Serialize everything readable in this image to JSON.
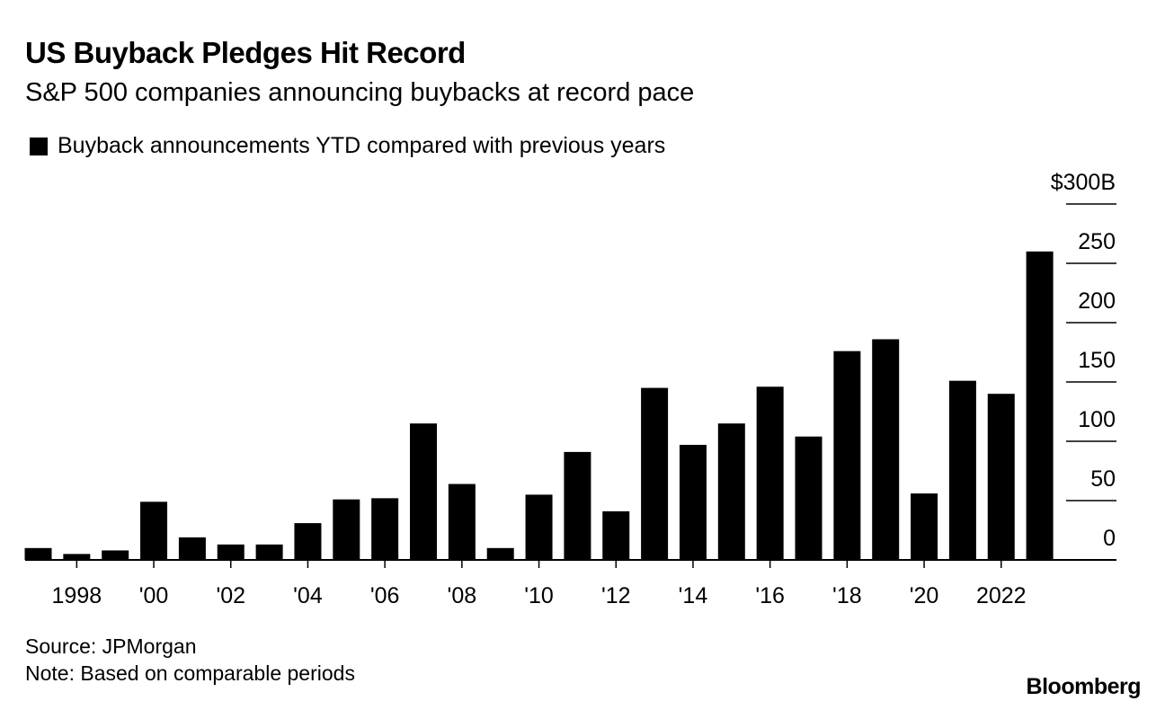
{
  "title": "US Buyback Pledges Hit Record",
  "subtitle": "S&P 500 companies announcing buybacks at record pace",
  "legend": {
    "label": "Buyback announcements YTD compared with previous years"
  },
  "footer": {
    "source": "Source: JPMorgan",
    "note": "Note: Based on comparable periods"
  },
  "brand": "Bloomberg",
  "colors": {
    "bar": "#000000",
    "grid": "#000000",
    "background": "#ffffff"
  },
  "chart_data": {
    "type": "bar",
    "title": "US Buyback Pledges Hit Record",
    "subtitle": "S&P 500 companies announcing buybacks at record pace",
    "xlabel": "",
    "ylabel": "",
    "ylim": [
      0,
      300
    ],
    "grid": true,
    "legend_position": "top-left",
    "years": [
      1997,
      1998,
      1999,
      2000,
      2001,
      2002,
      2003,
      2004,
      2005,
      2006,
      2007,
      2008,
      2009,
      2010,
      2011,
      2012,
      2013,
      2014,
      2015,
      2016,
      2017,
      2018,
      2019,
      2020,
      2021,
      2022,
      2023
    ],
    "series": [
      {
        "name": "Buyback announcements YTD compared with previous years",
        "values": [
          10,
          5,
          8,
          49,
          19,
          13,
          13,
          31,
          51,
          52,
          115,
          64,
          10,
          55,
          91,
          41,
          145,
          97,
          115,
          146,
          104,
          176,
          186,
          56,
          151,
          140,
          260
        ]
      }
    ],
    "y_ticks": [
      {
        "value": 0,
        "label": "0"
      },
      {
        "value": 50,
        "label": "50"
      },
      {
        "value": 100,
        "label": "100"
      },
      {
        "value": 150,
        "label": "150"
      },
      {
        "value": 200,
        "label": "200"
      },
      {
        "value": 250,
        "label": "250"
      },
      {
        "value": 300,
        "label": "$300B"
      }
    ],
    "x_ticks": [
      {
        "year": 1998,
        "label": "1998"
      },
      {
        "year": 2000,
        "label": "'00"
      },
      {
        "year": 2002,
        "label": "'02"
      },
      {
        "year": 2004,
        "label": "'04"
      },
      {
        "year": 2006,
        "label": "'06"
      },
      {
        "year": 2008,
        "label": "'08"
      },
      {
        "year": 2010,
        "label": "'10"
      },
      {
        "year": 2012,
        "label": "'12"
      },
      {
        "year": 2014,
        "label": "'14"
      },
      {
        "year": 2016,
        "label": "'16"
      },
      {
        "year": 2018,
        "label": "'18"
      },
      {
        "year": 2020,
        "label": "'20"
      },
      {
        "year": 2022,
        "label": "2022"
      }
    ]
  }
}
